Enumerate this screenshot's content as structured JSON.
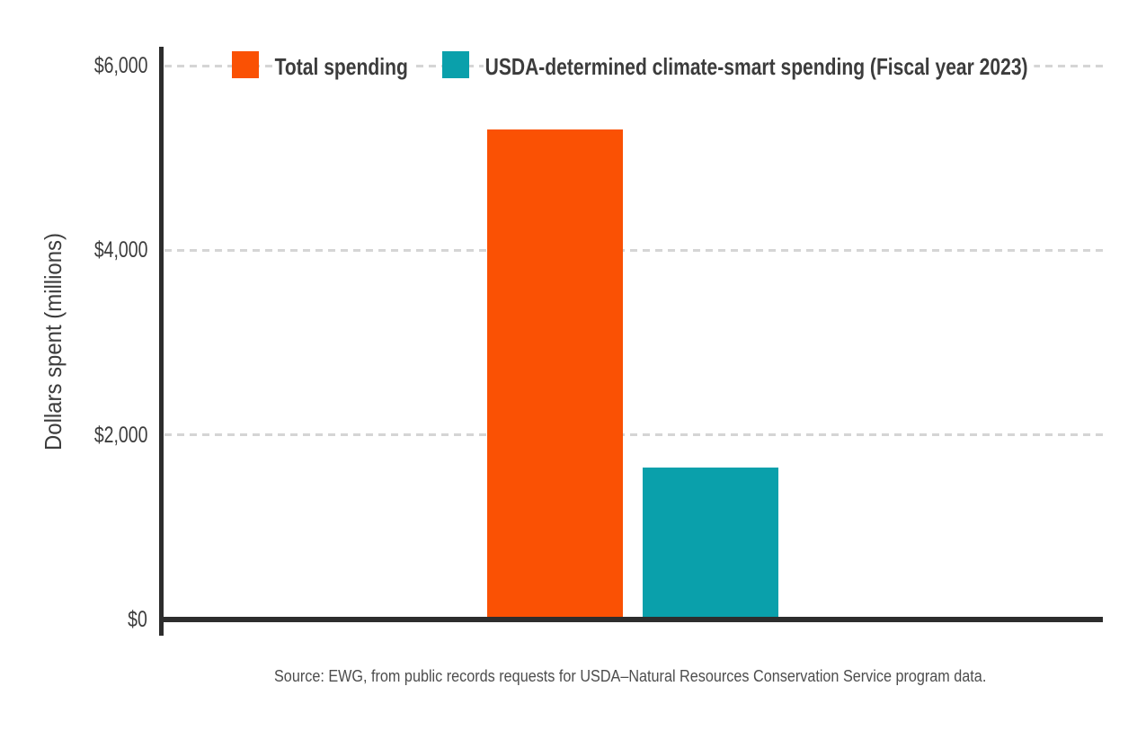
{
  "chart_data": {
    "type": "bar",
    "title": "",
    "ylabel": "Dollars spent (millions)",
    "ylim": [
      0,
      6000
    ],
    "yticks": [
      0,
      2000,
      4000,
      6000
    ],
    "ytick_labels": [
      "$0",
      "$2,000",
      "$4,000",
      "$6,000"
    ],
    "grid": "horizontal-dashed",
    "legend_position": "top",
    "series": [
      {
        "name": "Total spending",
        "value": 5310,
        "color": "#fa5104"
      },
      {
        "name": "USDA-determined climate-smart spending (Fiscal year 2023)",
        "value": 1650,
        "color": "#0aa0ab"
      }
    ]
  },
  "source_note": "Source: EWG, from public records requests for USDA–Natural Resources Conservation Service program data.",
  "colors": {
    "axis": "#2d2d2d",
    "gridline": "#d5d5d5",
    "label_text": "#3c3c3c",
    "source_text": "#4d4d4d",
    "background": "#ffffff"
  }
}
